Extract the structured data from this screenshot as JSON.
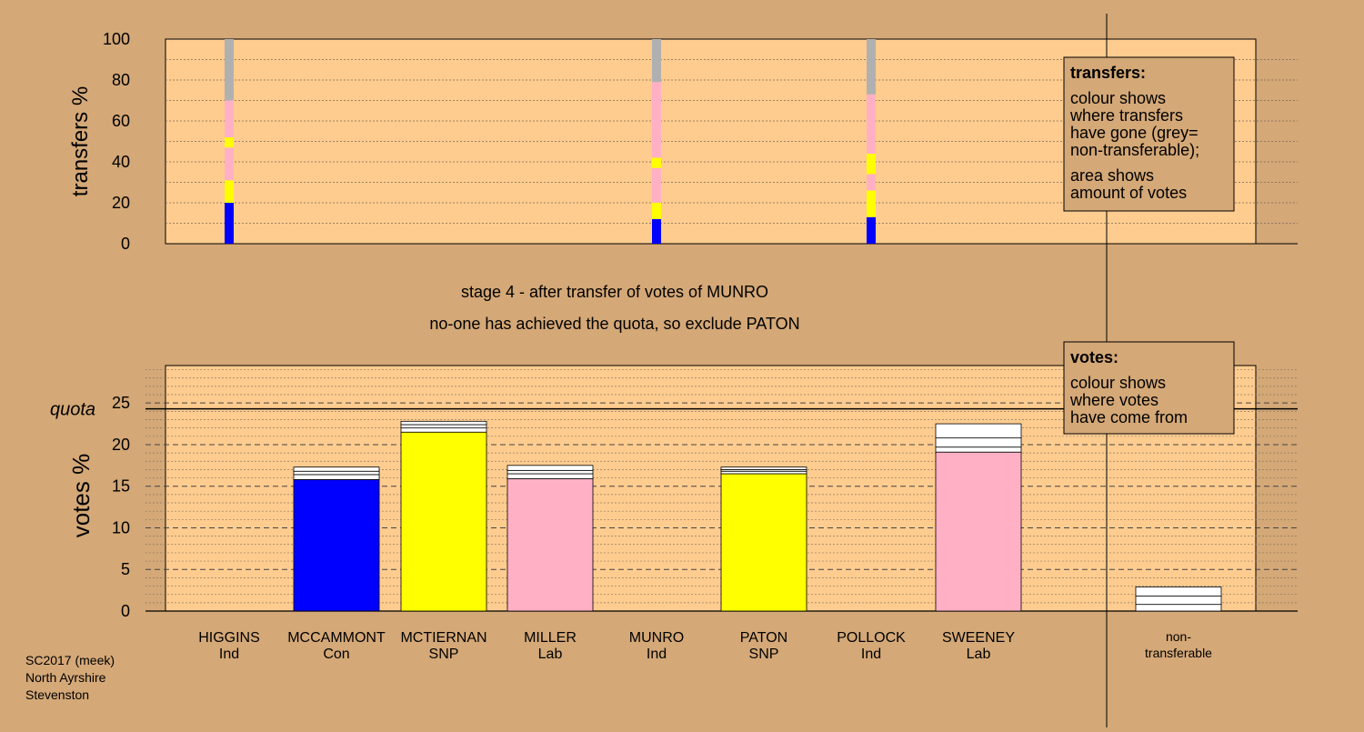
{
  "stage_title": "stage 4 - after transfer of votes of MUNRO",
  "stage_subtitle": "no-one has achieved the quota, so exclude PATON",
  "footer": [
    "SC2017 (meek)",
    "North Ayrshire",
    "Stevenston"
  ],
  "colors": {
    "background": "#d4a877",
    "plot_bg": "#ffcc8f",
    "Con": "#0000ff",
    "SNP": "#ffff00",
    "Lab": "#ffb0c4",
    "Ind": "#c0c0c0",
    "non_transferable": "#b0b0b0",
    "white": "#ffffff"
  },
  "legend_transfers": {
    "title": "transfers:",
    "lines": [
      "colour shows",
      "where transfers",
      "have gone (grey=",
      "non-transferable);",
      "area shows",
      "amount of votes"
    ]
  },
  "legend_votes": {
    "title": "votes:",
    "lines": [
      "colour shows",
      "where votes",
      "have come from"
    ]
  },
  "chart_data": [
    {
      "type": "bar",
      "name": "transfers",
      "ylabel": "transfers %",
      "ylim": [
        0,
        100
      ],
      "yticks": [
        0,
        20,
        40,
        60,
        80,
        100
      ],
      "columns": [
        {
          "candidate_index": 0,
          "segments": [
            {
              "color": "Con",
              "value": 20
            },
            {
              "color": "SNP",
              "value": 11
            },
            {
              "color": "Lab",
              "value": 16
            },
            {
              "color": "SNP",
              "value": 5
            },
            {
              "color": "Lab",
              "value": 18
            },
            {
              "color": "non_transferable",
              "value": 30
            }
          ]
        },
        {
          "candidate_index": 4,
          "segments": [
            {
              "color": "Con",
              "value": 12
            },
            {
              "color": "SNP",
              "value": 8
            },
            {
              "color": "Lab",
              "value": 17
            },
            {
              "color": "SNP",
              "value": 5
            },
            {
              "color": "Lab",
              "value": 37
            },
            {
              "color": "non_transferable",
              "value": 21
            }
          ]
        },
        {
          "candidate_index": 6,
          "segments": [
            {
              "color": "Con",
              "value": 13
            },
            {
              "color": "SNP",
              "value": 13
            },
            {
              "color": "Lab",
              "value": 8
            },
            {
              "color": "SNP",
              "value": 10
            },
            {
              "color": "Lab",
              "value": 29
            },
            {
              "color": "non_transferable",
              "value": 27
            }
          ]
        }
      ]
    },
    {
      "type": "bar",
      "name": "votes",
      "ylabel": "votes %",
      "ylim": [
        0,
        29.5
      ],
      "yticks": [
        0,
        5,
        10,
        15,
        20,
        25
      ],
      "quota": 24.3,
      "quota_label": "quota",
      "candidates": [
        {
          "name": "HIGGINS",
          "party": "Ind",
          "total": 0,
          "base": 0,
          "base_color": "Ind",
          "additions": []
        },
        {
          "name": "MCCAMMONT",
          "party": "Con",
          "total": 17.3,
          "base": 15.8,
          "base_color": "Con",
          "additions": [
            0.6,
            0.4,
            0.5
          ]
        },
        {
          "name": "MCTIERNAN",
          "party": "SNP",
          "total": 22.8,
          "base": 21.5,
          "base_color": "SNP",
          "additions": [
            0.5,
            0.4,
            0.4
          ]
        },
        {
          "name": "MILLER",
          "party": "Lab",
          "total": 17.5,
          "base": 15.9,
          "base_color": "Lab",
          "additions": [
            0.6,
            0.4,
            0.6
          ]
        },
        {
          "name": "MUNRO",
          "party": "Ind",
          "total": 0,
          "base": 0,
          "base_color": "Ind",
          "additions": []
        },
        {
          "name": "PATON",
          "party": "SNP",
          "total": 17.3,
          "base": 16.5,
          "base_color": "SNP",
          "additions": [
            0.3,
            0.2,
            0.3
          ]
        },
        {
          "name": "POLLOCK",
          "party": "Ind",
          "total": 0,
          "base": 0,
          "base_color": "Ind",
          "additions": []
        },
        {
          "name": "SWEENEY",
          "party": "Lab",
          "total": 22.5,
          "base": 19.1,
          "base_color": "Lab",
          "additions": [
            0.6,
            1.1,
            1.7
          ]
        }
      ],
      "non_transferable": {
        "label": [
          "non-",
          "transferable"
        ],
        "total": 2.9,
        "segments": [
          0.8,
          1.0,
          1.1
        ]
      }
    }
  ]
}
